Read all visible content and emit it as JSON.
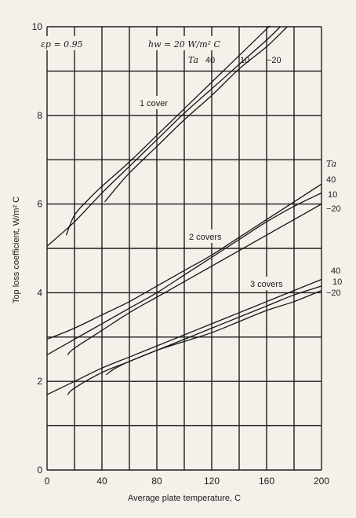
{
  "chart_data": {
    "type": "line",
    "title": "",
    "xlabel": "Average plate temperature, C",
    "ylabel": "Top loss coefficient, W/m² C",
    "xlim": [
      0,
      200
    ],
    "ylim": [
      0,
      10
    ],
    "x_ticks": [
      "0",
      "40",
      "80",
      "120",
      "160",
      "200"
    ],
    "y_ticks": [
      "0",
      "2",
      "4",
      "6",
      "8",
      "10"
    ],
    "grid": true,
    "annotations": {
      "emissivity": "εp = 0.95",
      "wind": "hw = 20 W/m² C",
      "ta_symbol": "Ta",
      "one_cover": "1 cover",
      "two_covers": "2 covers",
      "three_covers": "3 covers",
      "ta_values_top": [
        "40",
        "10",
        "−20"
      ],
      "ta_values_two": [
        "40",
        "10",
        "−20"
      ],
      "ta_values_three": [
        "40",
        "10",
        "−20"
      ]
    },
    "series": [
      {
        "cover": "1 cover",
        "ta": "40",
        "points": [
          [
            0,
            5.05
          ],
          [
            20,
            5.6
          ],
          [
            40,
            6.25
          ],
          [
            60,
            6.85
          ],
          [
            80,
            7.45
          ],
          [
            100,
            8.05
          ],
          [
            120,
            8.6
          ],
          [
            140,
            9.15
          ],
          [
            160,
            9.7
          ],
          [
            170,
            10.0
          ]
        ]
      },
      {
        "cover": "1 cover",
        "ta": "10",
        "points": [
          [
            14,
            5.3
          ],
          [
            20,
            5.75
          ],
          [
            30,
            6.1
          ],
          [
            40,
            6.4
          ],
          [
            60,
            6.95
          ],
          [
            80,
            7.55
          ],
          [
            100,
            8.15
          ],
          [
            120,
            8.75
          ],
          [
            140,
            9.35
          ],
          [
            160,
            9.95
          ],
          [
            162,
            10.0
          ]
        ]
      },
      {
        "cover": "1 cover",
        "ta": "-20",
        "points": [
          [
            42,
            6.05
          ],
          [
            50,
            6.35
          ],
          [
            60,
            6.7
          ],
          [
            80,
            7.3
          ],
          [
            100,
            7.9
          ],
          [
            120,
            8.45
          ],
          [
            140,
            9.05
          ],
          [
            160,
            9.55
          ],
          [
            175,
            10.0
          ]
        ]
      },
      {
        "cover": "2 covers",
        "ta": "40",
        "points": [
          [
            0,
            2.95
          ],
          [
            20,
            3.2
          ],
          [
            40,
            3.5
          ],
          [
            60,
            3.8
          ],
          [
            80,
            4.15
          ],
          [
            100,
            4.5
          ],
          [
            120,
            4.85
          ],
          [
            140,
            5.25
          ],
          [
            160,
            5.65
          ],
          [
            180,
            6.05
          ],
          [
            200,
            6.45
          ]
        ]
      },
      {
        "cover": "2 covers",
        "ta": "10",
        "points": [
          [
            0,
            2.6
          ],
          [
            20,
            2.95
          ],
          [
            40,
            3.3
          ],
          [
            60,
            3.65
          ],
          [
            80,
            4.0
          ],
          [
            100,
            4.4
          ],
          [
            120,
            4.8
          ],
          [
            140,
            5.2
          ],
          [
            160,
            5.6
          ],
          [
            180,
            5.95
          ],
          [
            200,
            6.25
          ]
        ]
      },
      {
        "cover": "2 covers",
        "ta": "-20",
        "points": [
          [
            15,
            2.6
          ],
          [
            20,
            2.75
          ],
          [
            40,
            3.15
          ],
          [
            60,
            3.55
          ],
          [
            80,
            3.9
          ],
          [
            100,
            4.25
          ],
          [
            120,
            4.6
          ],
          [
            140,
            4.95
          ],
          [
            160,
            5.3
          ],
          [
            180,
            5.65
          ],
          [
            200,
            6.0
          ]
        ]
      },
      {
        "cover": "3 covers",
        "ta": "40",
        "points": [
          [
            0,
            1.7
          ],
          [
            20,
            2.0
          ],
          [
            40,
            2.3
          ],
          [
            60,
            2.55
          ],
          [
            80,
            2.8
          ],
          [
            100,
            3.05
          ],
          [
            120,
            3.3
          ],
          [
            140,
            3.55
          ],
          [
            160,
            3.8
          ],
          [
            180,
            4.05
          ],
          [
            200,
            4.3
          ]
        ]
      },
      {
        "cover": "3 covers",
        "ta": "10",
        "points": [
          [
            15,
            1.7
          ],
          [
            20,
            1.85
          ],
          [
            40,
            2.2
          ],
          [
            60,
            2.45
          ],
          [
            80,
            2.7
          ],
          [
            100,
            2.95
          ],
          [
            120,
            3.2
          ],
          [
            140,
            3.45
          ],
          [
            160,
            3.7
          ],
          [
            180,
            3.95
          ],
          [
            200,
            4.15
          ]
        ]
      },
      {
        "cover": "3 covers",
        "ta": "-20",
        "points": [
          [
            43,
            2.15
          ],
          [
            50,
            2.3
          ],
          [
            60,
            2.45
          ],
          [
            80,
            2.7
          ],
          [
            100,
            2.9
          ],
          [
            120,
            3.1
          ],
          [
            140,
            3.35
          ],
          [
            160,
            3.6
          ],
          [
            180,
            3.8
          ],
          [
            200,
            4.05
          ]
        ]
      }
    ]
  }
}
